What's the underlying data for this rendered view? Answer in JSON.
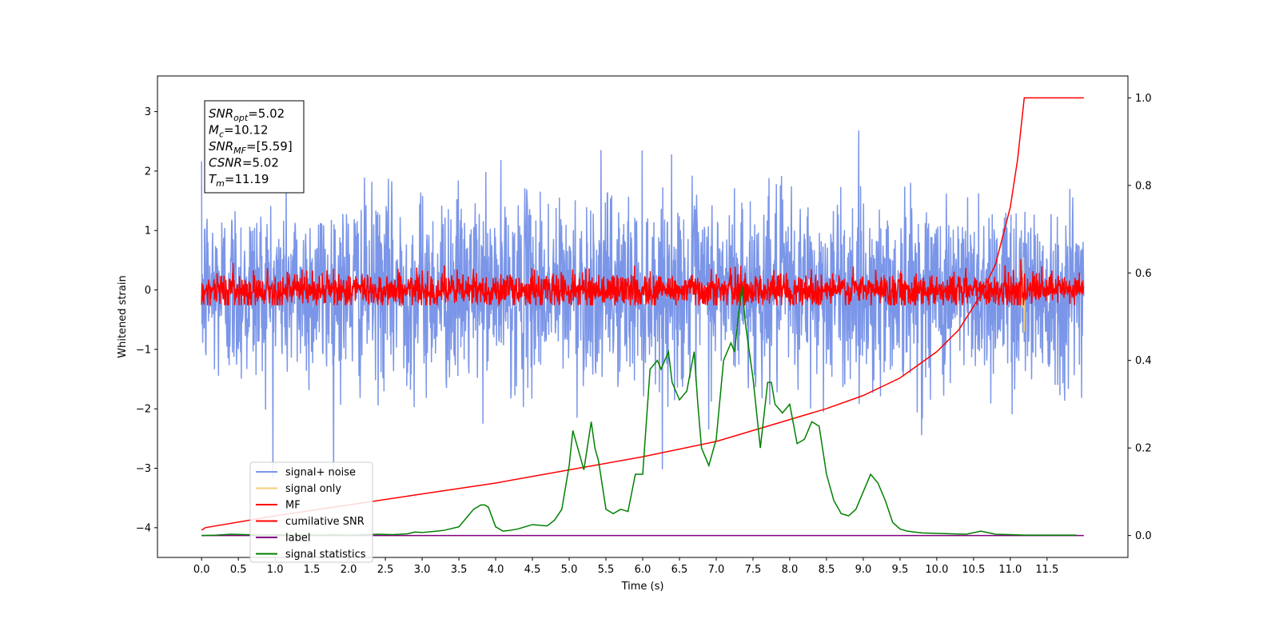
{
  "chart_data": {
    "type": "line",
    "xlabel": "Time (s)",
    "ylabel": "Whitened strain",
    "xlim": [
      -0.6,
      12.6
    ],
    "ylim": [
      -4.5,
      3.6
    ],
    "y2lim": [
      -0.05,
      1.05
    ],
    "x_ticks": [
      "0.0",
      "0.5",
      "1.0",
      "1.5",
      "2.0",
      "2.5",
      "3.0",
      "3.5",
      "4.0",
      "4.5",
      "5.0",
      "5.5",
      "6.0",
      "6.5",
      "7.0",
      "7.5",
      "8.0",
      "8.5",
      "9.0",
      "9.5",
      "10.0",
      "10.5",
      "11.0",
      "11.5"
    ],
    "y_ticks": [
      "3",
      "2",
      "1",
      "0",
      "−1",
      "−2",
      "−3",
      "−4"
    ],
    "y2_ticks": [
      "1.0",
      "0.8",
      "0.6",
      "0.4",
      "0.2",
      "0.0"
    ],
    "info_box": [
      {
        "symbol": "SNR",
        "sub": "opt",
        "value": "=5.02"
      },
      {
        "symbol": "M",
        "sub": "c",
        "value": "=10.12"
      },
      {
        "symbol": "SNR",
        "sub": "MF",
        "value": "=[5.59]"
      },
      {
        "symbol": "CSNR",
        "sub": "",
        "value": "=5.02"
      },
      {
        "symbol": "T",
        "sub": "m",
        "value": "=11.19"
      }
    ],
    "legend": {
      "position": "lower-left",
      "entries": [
        {
          "label": "signal+ noise",
          "color": "#7b96e8"
        },
        {
          "label": "signal only",
          "color": "#f5cf7a"
        },
        {
          "label": "MF",
          "color": "#ff0000"
        },
        {
          "label": "cumilative SNR",
          "color": "#ff0000"
        },
        {
          "label": "label",
          "color": "#800080"
        },
        {
          "label": "signal statistics",
          "color": "#008000"
        }
      ]
    },
    "series": [
      {
        "name": "signal+ noise",
        "axis": "left",
        "color": "#7b96e8",
        "x_range": [
          0,
          12.0
        ],
        "std": 0.78,
        "y_range": [
          -4.1,
          3.2
        ]
      },
      {
        "name": "MF",
        "axis": "left",
        "color": "#ff0000",
        "x_range": [
          0,
          12.0
        ],
        "std": 0.14,
        "y_range": [
          -0.25,
          0.65
        ]
      },
      {
        "name": "signal only",
        "axis": "left",
        "color": "#f5cf7a",
        "x": [
          11.12,
          11.15,
          11.17,
          11.18,
          11.19,
          11.2
        ],
        "y": [
          0.0,
          0.12,
          -0.3,
          0.55,
          -0.7,
          0.0
        ]
      },
      {
        "name": "cumilative SNR",
        "axis": "right",
        "color": "#ff0000",
        "x": [
          0,
          0.05,
          1.0,
          2.0,
          3.0,
          4.0,
          5.0,
          6.0,
          7.0,
          8.0,
          8.5,
          9.0,
          9.5,
          10.0,
          10.3,
          10.6,
          10.8,
          11.0,
          11.1,
          11.19,
          12.0
        ],
        "y": [
          0.012,
          0.018,
          0.045,
          0.07,
          0.095,
          0.12,
          0.15,
          0.18,
          0.215,
          0.265,
          0.29,
          0.32,
          0.36,
          0.42,
          0.47,
          0.55,
          0.62,
          0.75,
          0.86,
          1.0,
          1.0
        ]
      },
      {
        "name": "label",
        "axis": "right",
        "color": "#800080",
        "x": [
          0,
          12.0
        ],
        "y": [
          0.0,
          0.0
        ]
      },
      {
        "name": "signal statistics",
        "axis": "right",
        "color": "#008000",
        "x": [
          0.0,
          0.2,
          0.4,
          0.6,
          0.8,
          1.0,
          1.2,
          1.4,
          1.6,
          1.8,
          2.0,
          2.2,
          2.4,
          2.6,
          2.8,
          2.9,
          3.0,
          3.2,
          3.3,
          3.5,
          3.6,
          3.7,
          3.8,
          3.85,
          3.9,
          4.0,
          4.1,
          4.2,
          4.3,
          4.5,
          4.7,
          4.8,
          4.9,
          5.0,
          5.05,
          5.1,
          5.2,
          5.3,
          5.35,
          5.4,
          5.5,
          5.6,
          5.7,
          5.8,
          5.9,
          6.0,
          6.1,
          6.2,
          6.25,
          6.3,
          6.35,
          6.4,
          6.5,
          6.6,
          6.7,
          6.75,
          6.8,
          6.9,
          7.0,
          7.1,
          7.2,
          7.25,
          7.3,
          7.35,
          7.4,
          7.5,
          7.6,
          7.7,
          7.75,
          7.8,
          7.9,
          8.0,
          8.1,
          8.2,
          8.3,
          8.4,
          8.5,
          8.6,
          8.7,
          8.8,
          8.9,
          9.0,
          9.1,
          9.2,
          9.3,
          9.4,
          9.5,
          9.6,
          9.8,
          10.0,
          10.2,
          10.4,
          10.6,
          10.8,
          11.0,
          11.2,
          11.5,
          11.9
        ],
        "y": [
          0.0,
          0.001,
          0.003,
          0.002,
          0.001,
          0.002,
          0.001,
          0.002,
          0.001,
          0.002,
          0.001,
          0.002,
          0.003,
          0.002,
          0.004,
          0.008,
          0.007,
          0.01,
          0.012,
          0.02,
          0.04,
          0.06,
          0.07,
          0.07,
          0.065,
          0.02,
          0.01,
          0.012,
          0.015,
          0.025,
          0.022,
          0.035,
          0.06,
          0.16,
          0.24,
          0.21,
          0.15,
          0.26,
          0.2,
          0.17,
          0.06,
          0.05,
          0.06,
          0.055,
          0.14,
          0.14,
          0.38,
          0.4,
          0.38,
          0.4,
          0.42,
          0.35,
          0.31,
          0.33,
          0.42,
          0.3,
          0.2,
          0.16,
          0.22,
          0.4,
          0.44,
          0.42,
          0.5,
          0.57,
          0.48,
          0.36,
          0.2,
          0.35,
          0.35,
          0.3,
          0.28,
          0.3,
          0.21,
          0.22,
          0.26,
          0.25,
          0.14,
          0.08,
          0.05,
          0.045,
          0.06,
          0.1,
          0.14,
          0.12,
          0.08,
          0.03,
          0.015,
          0.01,
          0.006,
          0.005,
          0.004,
          0.003,
          0.01,
          0.003,
          0.002,
          0.001,
          0.001,
          0.001
        ]
      }
    ]
  }
}
